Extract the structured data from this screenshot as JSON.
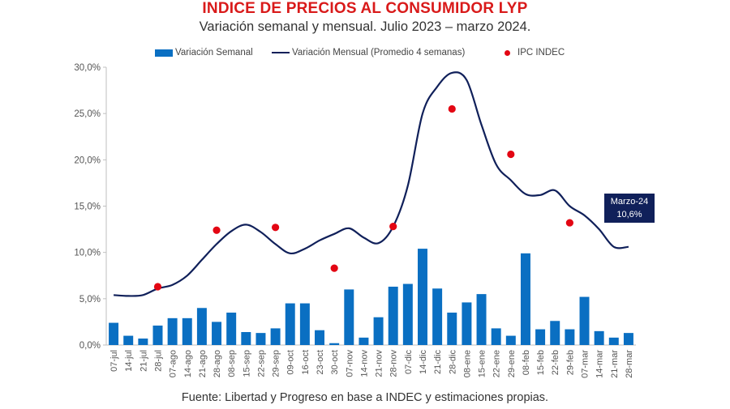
{
  "title": "INDICE DE PRECIOS AL CONSUMIDOR LYP",
  "subtitle": "Variación semanal y mensual. Julio 2023 – marzo 2024.",
  "source": "Fuente: Libertad y Progreso en base a INDEC y estimaciones propias.",
  "callout": {
    "line1": "Marzo-24",
    "line2": "10,6%"
  },
  "colors": {
    "bar": "#0a6fc2",
    "line": "#10205a",
    "dot": "#e30613",
    "title": "#d91a1a"
  },
  "chart_data": {
    "type": "bar",
    "ylim": [
      0,
      30
    ],
    "yticks": [
      "0,0%",
      "5,0%",
      "10,0%",
      "15,0%",
      "20,0%",
      "25,0%",
      "30,0%"
    ],
    "grid": false,
    "legend_position": "top",
    "categories": [
      "07-jul",
      "14-jul",
      "21-jul",
      "28-jul",
      "07-ago",
      "14-ago",
      "21-ago",
      "28-ago",
      "08-sep",
      "15-sep",
      "22-sep",
      "29-sep",
      "09-oct",
      "16-oct",
      "23-oct",
      "30-oct",
      "07-nov",
      "14-nov",
      "21-nov",
      "28-nov",
      "07-dic",
      "14-dic",
      "21-dic",
      "28-dic",
      "08-ene",
      "15-ene",
      "22-ene",
      "29-ene",
      "08-feb",
      "15-feb",
      "22-feb",
      "29-feb",
      "07-mar",
      "14-mar",
      "21-mar",
      "28-mar"
    ],
    "series": [
      {
        "name": "Variación Semanal",
        "type": "bar",
        "values": [
          2.4,
          1.0,
          0.7,
          2.1,
          2.9,
          2.9,
          4.0,
          2.5,
          3.5,
          1.4,
          1.3,
          1.8,
          4.5,
          4.5,
          1.6,
          0.2,
          6.0,
          0.8,
          3.0,
          6.3,
          6.6,
          10.4,
          6.1,
          3.5,
          4.6,
          5.5,
          1.8,
          1.0,
          9.9,
          1.7,
          2.6,
          1.7,
          5.2,
          1.5,
          0.8,
          1.3
        ]
      },
      {
        "name": "Variación Mensual (Promedio 4 semanas)",
        "type": "line",
        "values": [
          5.4,
          5.3,
          5.4,
          6.1,
          6.5,
          7.5,
          9.2,
          10.9,
          12.3,
          13.0,
          12.2,
          10.9,
          9.9,
          10.4,
          11.3,
          12.0,
          12.6,
          11.6,
          11.0,
          12.8,
          17.2,
          25.0,
          27.9,
          29.4,
          28.6,
          23.8,
          19.5,
          17.8,
          16.3,
          16.2,
          16.7,
          15.0,
          14.0,
          12.5,
          10.6,
          10.6
        ]
      },
      {
        "name": "IPC INDEC",
        "type": "scatter",
        "points": [
          {
            "category": "28-jul",
            "value": 6.3
          },
          {
            "category": "28-ago",
            "value": 12.4
          },
          {
            "category": "29-sep",
            "value": 12.7
          },
          {
            "category": "30-oct",
            "value": 8.3
          },
          {
            "category": "28-nov",
            "value": 12.8
          },
          {
            "category": "28-dic",
            "value": 25.5
          },
          {
            "category": "29-ene",
            "value": 20.6
          },
          {
            "category": "29-feb",
            "value": 13.2
          }
        ]
      }
    ]
  }
}
